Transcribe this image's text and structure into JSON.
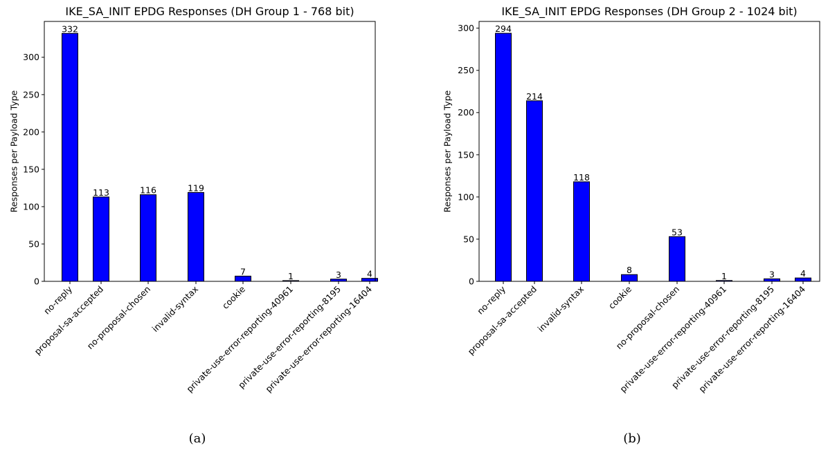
{
  "chart_data": [
    {
      "type": "bar",
      "title": "IKE_SA_INIT EPDG Responses (DH Group 1 - 768 bit)",
      "xlabel": "",
      "ylabel": "Responses per Payload Type",
      "categories": [
        "no-reply",
        "proposal-sa-accepted",
        "no-proposal-chosen",
        "invalid-syntax",
        "cookie",
        "private-use-error-reporting-40961",
        "private-use-error-reporting-8195",
        "private-use-error-reporting-16404"
      ],
      "values": [
        332,
        113,
        116,
        119,
        7,
        1,
        3,
        4
      ],
      "ylim": [
        0,
        348
      ],
      "yticks": [
        0,
        50,
        100,
        150,
        200,
        250,
        300
      ],
      "bar_color": "#0000ff",
      "grid": false,
      "caption": "(a)"
    },
    {
      "type": "bar",
      "title": "IKE_SA_INIT EPDG Responses (DH Group 2 - 1024 bit)",
      "xlabel": "",
      "ylabel": "Responses per Payload Type",
      "categories": [
        "no-reply",
        "proposal-sa-accepted",
        "invalid-syntax",
        "cookie",
        "no-proposal-chosen",
        "private-use-error-reporting-40961",
        "private-use-error-reporting-8195",
        "private-use-error-reporting-16404"
      ],
      "values": [
        294,
        214,
        118,
        8,
        53,
        1,
        3,
        4
      ],
      "ylim": [
        0,
        308
      ],
      "yticks": [
        0,
        50,
        100,
        150,
        200,
        250,
        300
      ],
      "bar_color": "#0000ff",
      "grid": false,
      "caption": "(b)"
    }
  ]
}
